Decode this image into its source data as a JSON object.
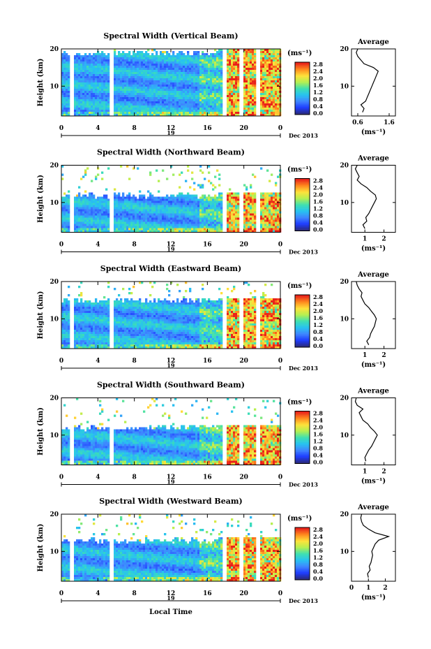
{
  "figure": {
    "bottom_xlabel": "Local Time",
    "date_label": "Dec 2013",
    "day_label": "19",
    "y_axis_label": "Height (km)",
    "colorbar_unit": "(ms⁻¹)",
    "avg_title": "Average",
    "avg_xlabel": "(ms⁻¹)"
  },
  "colors": {
    "colormap": [
      "#2b2a7a",
      "#1e3cff",
      "#3f86ff",
      "#27c3f0",
      "#3fe0b0",
      "#b6f050",
      "#ffe13a",
      "#ff8a1e",
      "#e8211a"
    ],
    "line": "#000000",
    "background": "#ffffff"
  },
  "chart_data": [
    {
      "type": "heatmap",
      "title": "Spectral Width (Vertical Beam)",
      "xlabel": "Local Time",
      "ylabel": "Height (km)",
      "xlim": [
        0,
        24
      ],
      "ylim": [
        2,
        20
      ],
      "xticks": [
        "0",
        "4",
        "8",
        "12",
        "16",
        "20",
        "0"
      ],
      "yticks": [
        "10",
        "20"
      ],
      "colorbar": {
        "unit": "(ms⁻¹)",
        "ticks": [
          "0.0",
          "0.4",
          "0.8",
          "1.2",
          "1.6",
          "2.0",
          "2.4",
          "2.8"
        ],
        "range": [
          0,
          3.0
        ]
      },
      "data_top_km": 20,
      "average_profile": {
        "title": "Average",
        "xlabel": "(ms⁻¹)",
        "xticks": [
          "0.6",
          "1.6"
        ],
        "xlim": [
          0.4,
          1.8
        ],
        "yticks": [
          "10",
          "20"
        ],
        "height_km": [
          3,
          4,
          5,
          6,
          7,
          8,
          9,
          10,
          11,
          12,
          13,
          14,
          15,
          16,
          17,
          18,
          19,
          20
        ],
        "values": [
          0.75,
          0.8,
          0.7,
          0.85,
          0.9,
          0.95,
          1.0,
          1.05,
          1.1,
          1.15,
          1.2,
          1.25,
          1.1,
          0.8,
          0.7,
          0.6,
          0.55,
          0.6
        ]
      }
    },
    {
      "type": "heatmap",
      "title": "Spectral Width (Northward Beam)",
      "xlabel": "Local Time",
      "ylabel": "Height (km)",
      "xlim": [
        0,
        24
      ],
      "ylim": [
        2,
        20
      ],
      "xticks": [
        "0",
        "4",
        "8",
        "12",
        "16",
        "20",
        "0"
      ],
      "yticks": [
        "10",
        "20"
      ],
      "colorbar": {
        "unit": "(ms⁻¹)",
        "ticks": [
          "0.0",
          "0.4",
          "0.8",
          "1.2",
          "1.6",
          "2.0",
          "2.4",
          "2.8"
        ],
        "range": [
          0,
          3.0
        ]
      },
      "data_top_km": 13,
      "average_profile": {
        "title": "Average",
        "xlabel": "(ms⁻¹)",
        "xticks": [
          "1",
          "2"
        ],
        "xlim": [
          0.3,
          2.6
        ],
        "yticks": [
          "10",
          "20"
        ],
        "height_km": [
          3,
          4,
          5,
          6,
          7,
          8,
          9,
          10,
          11,
          12,
          13,
          14,
          15,
          16,
          17,
          18,
          19,
          20
        ],
        "values": [
          1.0,
          0.9,
          1.1,
          1.05,
          1.2,
          1.3,
          1.4,
          1.5,
          1.6,
          1.55,
          1.3,
          1.1,
          0.8,
          0.6,
          0.7,
          0.6,
          0.5,
          0.6
        ]
      }
    },
    {
      "type": "heatmap",
      "title": "Spectral Width (Eastward Beam)",
      "xlabel": "Local Time",
      "ylabel": "Height (km)",
      "xlim": [
        0,
        24
      ],
      "ylim": [
        2,
        20
      ],
      "xticks": [
        "0",
        "4",
        "8",
        "12",
        "16",
        "20",
        "0"
      ],
      "yticks": [
        "10",
        "20"
      ],
      "colorbar": {
        "unit": "(ms⁻¹)",
        "ticks": [
          "0.0",
          "0.4",
          "0.8",
          "1.2",
          "1.6",
          "2.0",
          "2.4",
          "2.8"
        ],
        "range": [
          0,
          3.0
        ]
      },
      "data_top_km": 16,
      "average_profile": {
        "title": "Average",
        "xlabel": "(ms⁻¹)",
        "xticks": [
          "1",
          "2"
        ],
        "xlim": [
          0.3,
          2.6
        ],
        "yticks": [
          "10",
          "20"
        ],
        "height_km": [
          3,
          4,
          5,
          6,
          7,
          8,
          9,
          10,
          11,
          12,
          13,
          14,
          15,
          16,
          17,
          18,
          19,
          20
        ],
        "values": [
          1.2,
          1.1,
          1.25,
          1.3,
          1.4,
          1.5,
          1.55,
          1.6,
          1.5,
          1.35,
          1.2,
          1.0,
          0.9,
          0.8,
          0.85,
          0.7,
          0.6,
          0.55
        ]
      }
    },
    {
      "type": "heatmap",
      "title": "Spectral Width (Southward Beam)",
      "xlabel": "Local Time",
      "ylabel": "Height (km)",
      "xlim": [
        0,
        24
      ],
      "ylim": [
        2,
        20
      ],
      "xticks": [
        "0",
        "4",
        "8",
        "12",
        "16",
        "20",
        "0"
      ],
      "yticks": [
        "10",
        "20"
      ],
      "colorbar": {
        "unit": "(ms⁻¹)",
        "ticks": [
          "0.0",
          "0.4",
          "0.8",
          "1.2",
          "1.6",
          "2.0",
          "2.4",
          "2.8"
        ],
        "range": [
          0,
          3.0
        ]
      },
      "data_top_km": 13,
      "average_profile": {
        "title": "Average",
        "xlabel": "(ms⁻¹)",
        "xticks": [
          "1",
          "2"
        ],
        "xlim": [
          0.3,
          2.6
        ],
        "yticks": [
          "10",
          "20"
        ],
        "height_km": [
          3,
          4,
          5,
          6,
          7,
          8,
          9,
          10,
          11,
          12,
          13,
          14,
          15,
          16,
          17,
          18,
          19,
          20
        ],
        "values": [
          1.05,
          1.0,
          1.1,
          1.2,
          1.35,
          1.45,
          1.55,
          1.65,
          1.5,
          1.3,
          1.15,
          0.9,
          0.8,
          0.7,
          0.9,
          0.6,
          0.5,
          0.55
        ]
      }
    },
    {
      "type": "heatmap",
      "title": "Spectral Width (Westward Beam)",
      "xlabel": "Local Time",
      "ylabel": "Height (km)",
      "xlim": [
        0,
        24
      ],
      "ylim": [
        2,
        20
      ],
      "xticks": [
        "0",
        "4",
        "8",
        "12",
        "16",
        "20",
        "0"
      ],
      "yticks": [
        "10",
        "20"
      ],
      "colorbar": {
        "unit": "(ms⁻¹)",
        "ticks": [
          "0.0",
          "0.4",
          "0.8",
          "1.2",
          "1.6",
          "2.0",
          "2.4",
          "2.8"
        ],
        "range": [
          0,
          3.0
        ]
      },
      "data_top_km": 14,
      "average_profile": {
        "title": "Average",
        "xlabel": "(ms⁻¹)",
        "xticks": [
          "0",
          "1",
          "2"
        ],
        "xlim": [
          0,
          2.6
        ],
        "yticks": [
          "10",
          "20"
        ],
        "height_km": [
          3,
          4,
          5,
          6,
          7,
          8,
          9,
          10,
          11,
          12,
          13,
          14,
          15,
          16,
          17,
          18,
          19,
          20
        ],
        "values": [
          1.0,
          0.95,
          1.1,
          1.05,
          1.15,
          1.2,
          1.25,
          1.2,
          1.3,
          1.4,
          1.6,
          2.2,
          1.4,
          1.0,
          0.7,
          0.6,
          0.55,
          0.6
        ]
      }
    }
  ]
}
